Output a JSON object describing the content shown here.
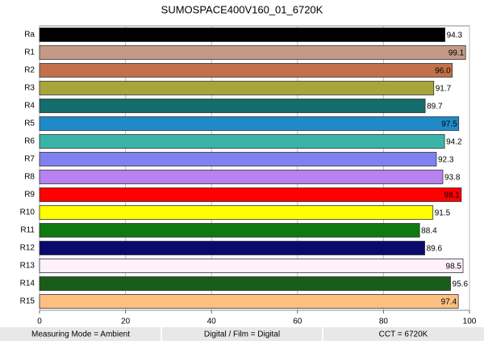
{
  "chart_data": {
    "type": "barh",
    "title": "SUMOSPACE400V160_01_6720K",
    "categories": [
      "Ra",
      "R1",
      "R2",
      "R3",
      "R4",
      "R5",
      "R6",
      "R7",
      "R8",
      "R9",
      "R10",
      "R11",
      "R12",
      "R13",
      "R14",
      "R15"
    ],
    "values": [
      94.3,
      99.1,
      96,
      91.7,
      89.7,
      97.5,
      94.2,
      92.3,
      93.8,
      98.1,
      91.5,
      88.4,
      89.6,
      98.5,
      95.6,
      97.4
    ],
    "value_labels": [
      "94.3",
      "99.1",
      "96.0",
      "91.7",
      "89.7",
      "97.5",
      "94.2",
      "92.3",
      "93.8",
      "98.1",
      "91.5",
      "88.4",
      "89.6",
      "98.5",
      "95.6",
      "97.4"
    ],
    "colors": [
      "#000000",
      "#c49a86",
      "#c2714a",
      "#a8a53a",
      "#146c6c",
      "#1e8bc8",
      "#38b5a8",
      "#8080f0",
      "#b882f0",
      "#ff0000",
      "#ffff00",
      "#0f7a0f",
      "#0a0a6e",
      "#fff0fa",
      "#1a5c1a",
      "#fdc080"
    ],
    "xlim": [
      0,
      100
    ],
    "xticks": [
      0,
      20,
      40,
      60,
      80,
      100
    ],
    "grid": true
  },
  "footer": [
    "Measuring Mode = Ambient",
    "Digital / Film = Digital",
    "CCT = 6720K"
  ]
}
